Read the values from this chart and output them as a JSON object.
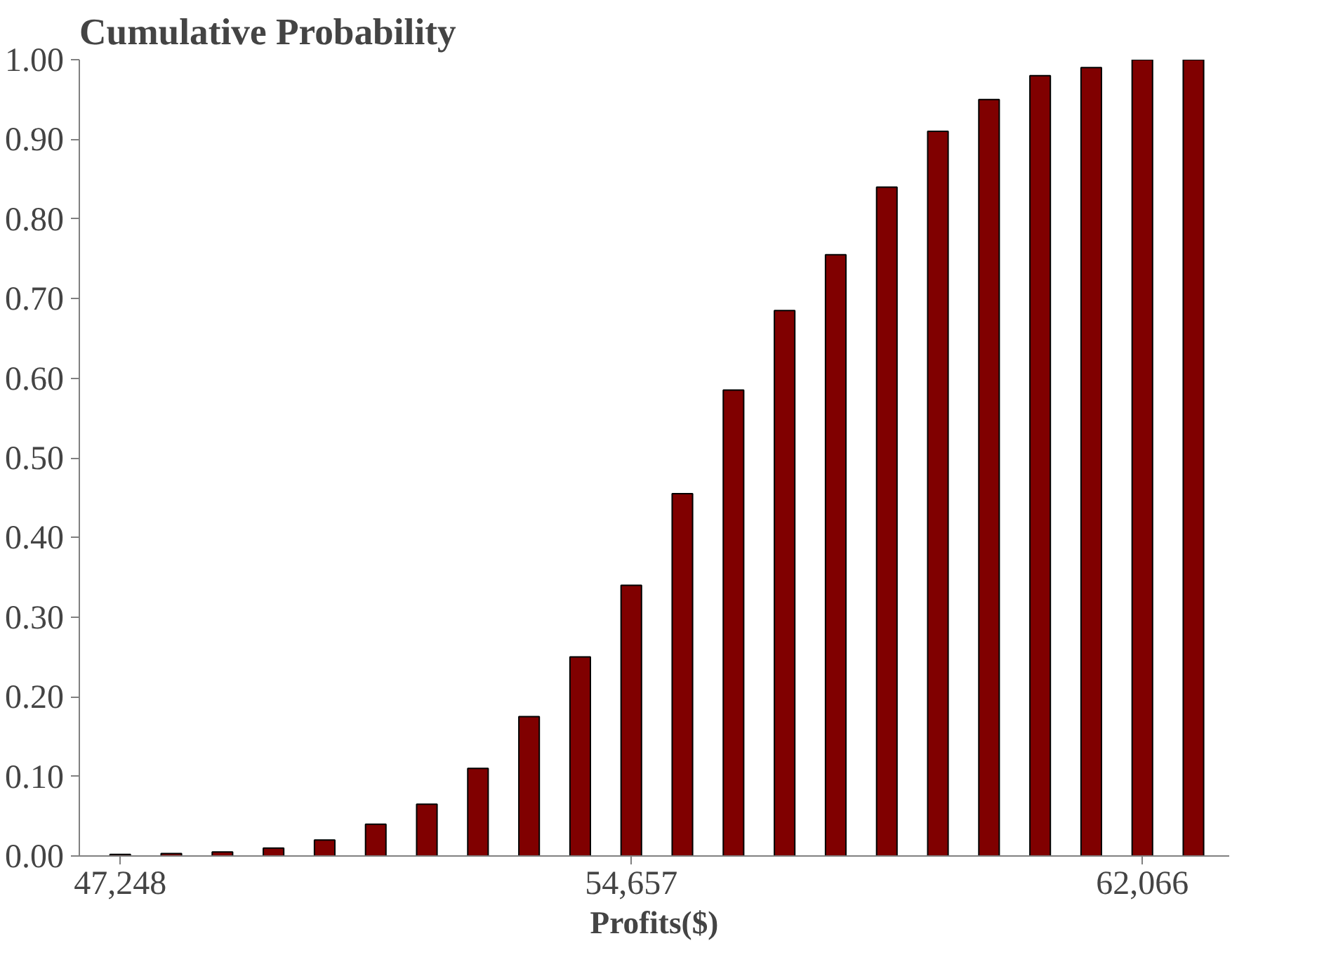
{
  "chart_data": {
    "type": "bar",
    "title": "Cumulative Probability",
    "xlabel": "Profits($)",
    "categories": [
      "47,248",
      null,
      null,
      null,
      null,
      null,
      null,
      null,
      null,
      null,
      "54,657",
      null,
      null,
      null,
      null,
      null,
      null,
      null,
      null,
      null,
      "62,066",
      null
    ],
    "values": [
      0.002,
      0.003,
      0.005,
      0.01,
      0.02,
      0.04,
      0.065,
      0.11,
      0.175,
      0.25,
      0.34,
      0.455,
      0.585,
      0.685,
      0.755,
      0.84,
      0.91,
      0.95,
      0.98,
      0.99,
      1.0,
      1.0
    ],
    "color": "#800000",
    "ylim": [
      0,
      1.0
    ],
    "yticks": [
      {
        "value": 0,
        "label": "0.00"
      },
      {
        "value": 0.1,
        "label": "0.10"
      },
      {
        "value": 0.2,
        "label": "0.20"
      },
      {
        "value": 0.3,
        "label": "0.30"
      },
      {
        "value": 0.4,
        "label": "0.40"
      },
      {
        "value": 0.5,
        "label": "0.50"
      },
      {
        "value": 0.6,
        "label": "0.60"
      },
      {
        "value": 0.7,
        "label": "0.70"
      },
      {
        "value": 0.8,
        "label": "0.80"
      },
      {
        "value": 0.9,
        "label": "0.90"
      },
      {
        "value": 1.0,
        "label": "1.00"
      }
    ],
    "grid": false
  }
}
